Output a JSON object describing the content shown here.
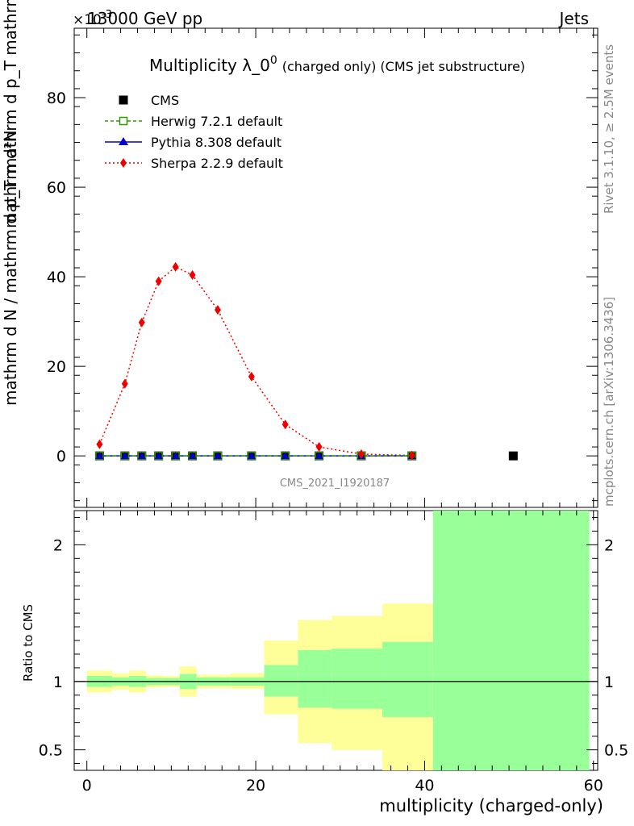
{
  "header": {
    "left": "13000 GeV pp",
    "right": "Jets",
    "exponent_label": "×10",
    "exponent_power": "-3"
  },
  "side_text": {
    "upper": "Rivet 3.1.10, ≥ 2.5M events",
    "lower": "mcplots.cern.ch [arXiv:1306.3436]"
  },
  "chart_data": [
    {
      "type": "scatter",
      "title_main": "Multiplicity λ_0",
      "title_sup": "0",
      "title_rest": "(charged only) (CMS jet substructure)",
      "ylabel": "1 / (mathrm d N / mathrm d p_T) · mathrm d²N / (mathrm d p_T mathrm d lambda)",
      "ylabel_numerator": "mathrm d²N",
      "ylabel_numerator_2": "mathrm d p_T mathrm d lambda",
      "ylabel_denominator": "mathrm d N / mathrm d p_T",
      "xlim": [
        -1.5,
        60.5
      ],
      "ylim": [
        -11.5,
        95.5
      ],
      "yticks": [
        0,
        20,
        40,
        60,
        80
      ],
      "watermark": "CMS_2021_I1920187",
      "legend": [
        {
          "name": "CMS",
          "color": "#000000",
          "style": "square"
        },
        {
          "name": "Herwig 7.2.1 default",
          "color": "#339900",
          "style": "open-square-dashed"
        },
        {
          "name": "Pythia 8.308 default",
          "color": "#0000cc",
          "style": "triangle-solid"
        },
        {
          "name": "Sherpa 2.2.9 default",
          "color": "#ee0000",
          "style": "diamond-dotted"
        }
      ],
      "x": [
        1.5,
        4.5,
        6.5,
        8.5,
        10.5,
        12.5,
        15.5,
        19.5,
        23.5,
        27.5,
        32.5,
        38.5
      ],
      "series": [
        {
          "name": "CMS",
          "x": [
            1.5,
            4.5,
            6.5,
            8.5,
            10.5,
            12.5,
            15.5,
            19.5,
            23.5,
            27.5,
            32.5,
            38.5,
            50.5
          ],
          "values": [
            0,
            0,
            0,
            0,
            0,
            0,
            0,
            0,
            0,
            0,
            0,
            0,
            0
          ]
        },
        {
          "name": "Herwig 7.2.1 default",
          "values": [
            0,
            0,
            0,
            0,
            0,
            0,
            0,
            0,
            0,
            0,
            0,
            0
          ]
        },
        {
          "name": "Pythia 8.308 default",
          "values": [
            0,
            0,
            0,
            0,
            0,
            0,
            0,
            0,
            0,
            0,
            0,
            0
          ]
        },
        {
          "name": "Sherpa 2.2.9 default",
          "values": [
            2.6,
            16.1,
            29.8,
            39.0,
            42.2,
            40.4,
            32.6,
            17.7,
            7.0,
            2.0,
            0.4,
            0.1
          ]
        }
      ]
    },
    {
      "type": "area",
      "ylabel": "Ratio to CMS",
      "xlabel": "multiplicity (charged-only)",
      "xlim": [
        -1.5,
        60.5
      ],
      "ylim": [
        0.35,
        2.25
      ],
      "xticks": [
        0,
        20,
        40,
        60
      ],
      "yticks": [
        0.5,
        1,
        2
      ],
      "reference": 1,
      "bins": [
        {
          "lo": 0,
          "hi": 3,
          "inner": [
            0.96,
            1.04
          ],
          "outer": [
            0.92,
            1.08
          ]
        },
        {
          "lo": 3,
          "hi": 5,
          "inner": [
            0.97,
            1.03
          ],
          "outer": [
            0.94,
            1.06
          ]
        },
        {
          "lo": 5,
          "hi": 7,
          "inner": [
            0.96,
            1.04
          ],
          "outer": [
            0.92,
            1.08
          ]
        },
        {
          "lo": 7,
          "hi": 9,
          "inner": [
            0.975,
            1.025
          ],
          "outer": [
            0.955,
            1.045
          ]
        },
        {
          "lo": 9,
          "hi": 11,
          "inner": [
            0.975,
            1.025
          ],
          "outer": [
            0.96,
            1.04
          ]
        },
        {
          "lo": 11,
          "hi": 13,
          "inner": [
            0.945,
            1.055
          ],
          "outer": [
            0.89,
            1.11
          ]
        },
        {
          "lo": 13,
          "hi": 17,
          "inner": [
            0.97,
            1.03
          ],
          "outer": [
            0.95,
            1.05
          ]
        },
        {
          "lo": 17,
          "hi": 21,
          "inner": [
            0.97,
            1.03
          ],
          "outer": [
            0.945,
            1.06
          ]
        },
        {
          "lo": 21,
          "hi": 25,
          "inner": [
            0.89,
            1.12
          ],
          "outer": [
            0.76,
            1.3
          ]
        },
        {
          "lo": 25,
          "hi": 29,
          "inner": [
            0.81,
            1.23
          ],
          "outer": [
            0.55,
            1.45
          ]
        },
        {
          "lo": 29,
          "hi": 35,
          "inner": [
            0.8,
            1.24
          ],
          "outer": [
            0.5,
            1.48
          ]
        },
        {
          "lo": 35,
          "hi": 41,
          "inner": [
            0.74,
            1.29
          ],
          "outer": [
            0.0,
            1.57
          ]
        },
        {
          "lo": 41,
          "hi": 59.5,
          "inner": [
            0.0,
            9.0
          ],
          "outer": [
            0.0,
            9.0
          ]
        }
      ],
      "colors": {
        "inner": "#99ff99",
        "outer": "#ffff99"
      }
    }
  ]
}
